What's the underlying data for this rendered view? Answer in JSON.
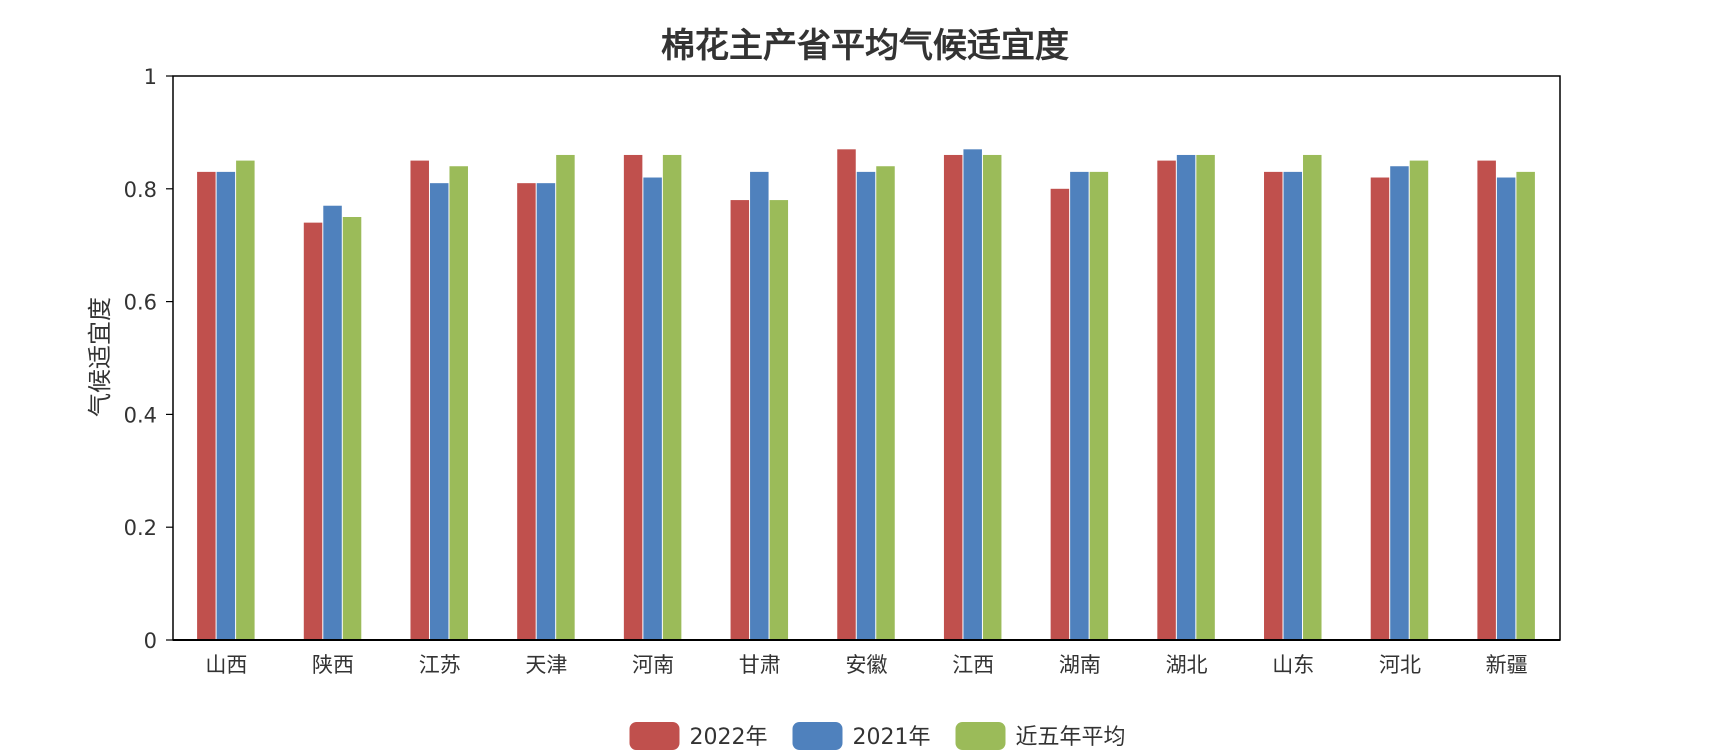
{
  "chart_data": {
    "type": "bar",
    "title": "棉花主产省平均气候适宜度",
    "xlabel": "",
    "ylabel": "气候适宜度",
    "ylim": [
      0,
      1
    ],
    "yticks": [
      "0",
      "0.2",
      "0.4",
      "0.6",
      "0.8",
      "1"
    ],
    "categories": [
      "山西",
      "陕西",
      "江苏",
      "天津",
      "河南",
      "甘肃",
      "安徽",
      "江西",
      "湖南",
      "湖北",
      "山东",
      "河北",
      "新疆"
    ],
    "series": [
      {
        "name": "2022年",
        "color": "#c0504d",
        "values": [
          0.83,
          0.74,
          0.85,
          0.81,
          0.86,
          0.78,
          0.87,
          0.86,
          0.8,
          0.85,
          0.83,
          0.82,
          0.85
        ]
      },
      {
        "name": "2021年",
        "color": "#4f81bd",
        "values": [
          0.83,
          0.77,
          0.81,
          0.81,
          0.82,
          0.83,
          0.83,
          0.87,
          0.83,
          0.86,
          0.83,
          0.84,
          0.82
        ]
      },
      {
        "name": "近五年平均",
        "color": "#9bbb59",
        "values": [
          0.85,
          0.75,
          0.84,
          0.86,
          0.86,
          0.78,
          0.84,
          0.86,
          0.83,
          0.86,
          0.86,
          0.85,
          0.83
        ]
      }
    ],
    "grid": false,
    "legend_position": "bottom-center"
  }
}
